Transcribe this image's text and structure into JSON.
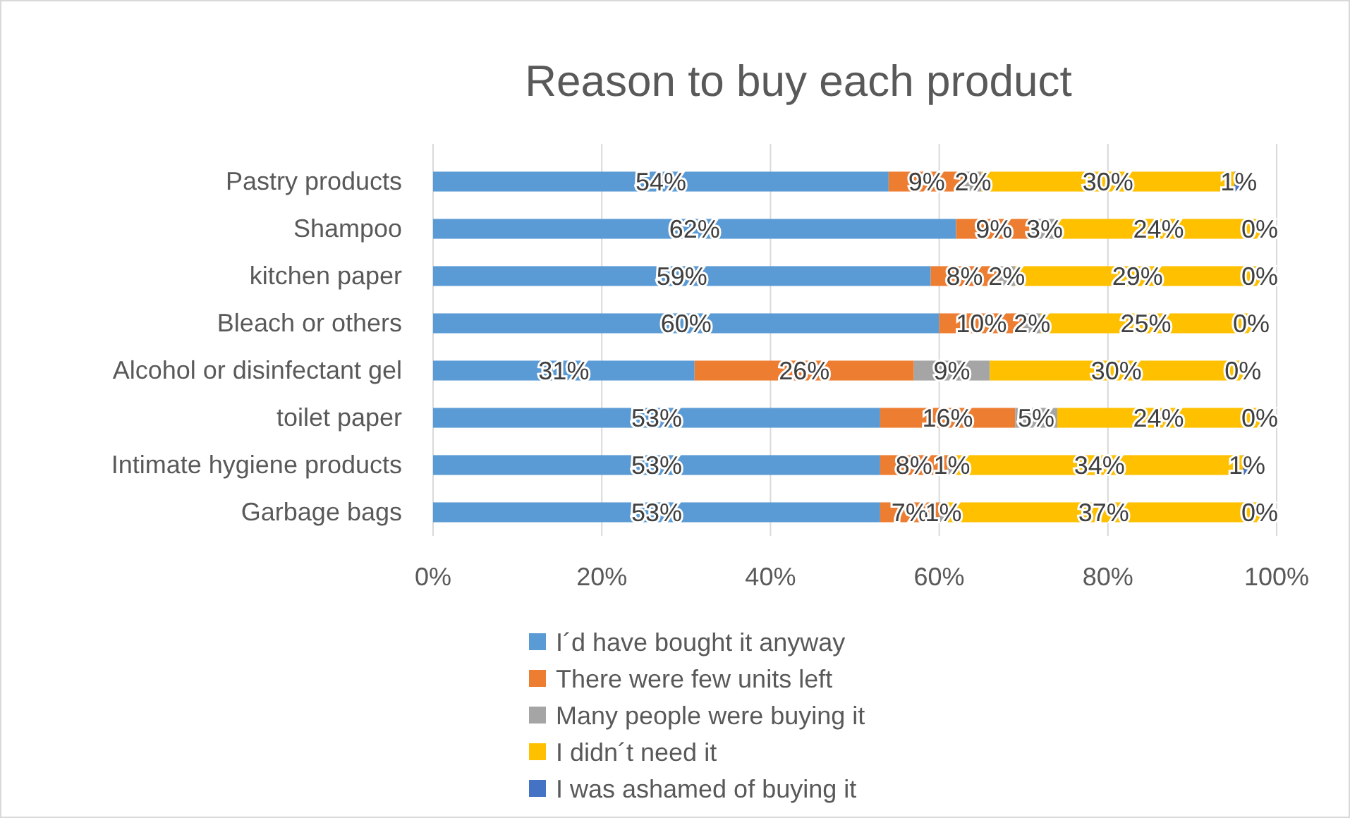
{
  "chart_data": {
    "type": "bar",
    "orientation": "horizontal",
    "stacked": true,
    "title": "Reason to buy each product",
    "categories": [
      "Pastry products",
      "Shampoo",
      "kitchen paper",
      "Bleach or others",
      "Alcohol or disinfectant gel",
      "toilet paper",
      "Intimate hygiene products",
      "Garbage bags"
    ],
    "series": [
      {
        "name": "I´d have bought it anyway",
        "color": "#5b9bd5",
        "values": [
          54,
          62,
          59,
          60,
          31,
          53,
          53,
          53
        ],
        "value_labels": [
          "54%",
          "62%",
          "59%",
          "60%",
          "31%",
          "53%",
          "53%",
          "53%"
        ]
      },
      {
        "name": "There were few units left",
        "color": "#ed7d31",
        "values": [
          9,
          9,
          8,
          10,
          26,
          16,
          8,
          7
        ],
        "value_labels": [
          "9%",
          "9%",
          "8%",
          "10%",
          "26%",
          "16%",
          "8%",
          "7%"
        ]
      },
      {
        "name": "Many people were buying it",
        "color": "#a5a5a5",
        "values": [
          2,
          3,
          2,
          2,
          9,
          5,
          1,
          1
        ],
        "value_labels": [
          "2%",
          "3%",
          "2%",
          "2%",
          "9%",
          "5%",
          "1%",
          "1%"
        ]
      },
      {
        "name": "I didn´t need it",
        "color": "#ffc000",
        "values": [
          30,
          24,
          29,
          25,
          30,
          24,
          34,
          37
        ],
        "value_labels": [
          "30%",
          "24%",
          "29%",
          "25%",
          "30%",
          "24%",
          "34%",
          "37%"
        ]
      },
      {
        "name": "I was ashamed of buying it",
        "color": "#4472c4",
        "values": [
          1,
          0,
          0,
          0,
          0,
          0,
          1,
          0
        ],
        "value_labels": [
          "1%",
          "0%",
          "0%",
          "0%",
          "0%",
          "0%",
          "1%",
          "0%"
        ]
      }
    ],
    "xlim": [
      0,
      100
    ],
    "xticks": [
      {
        "value": 0,
        "label": "0%"
      },
      {
        "value": 20,
        "label": "20%"
      },
      {
        "value": 40,
        "label": "40%"
      },
      {
        "value": 60,
        "label": "60%"
      },
      {
        "value": 80,
        "label": "80%"
      },
      {
        "value": 100,
        "label": "100%"
      }
    ],
    "grid": "x",
    "legend": "bottom"
  }
}
